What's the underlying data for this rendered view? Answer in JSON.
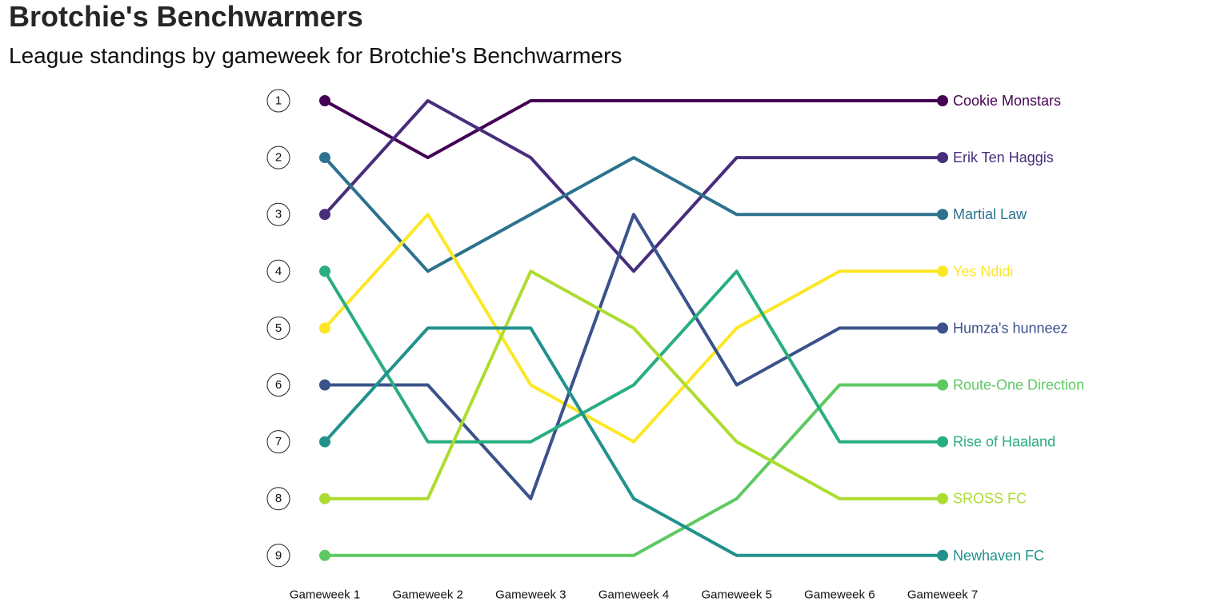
{
  "chart_data": {
    "type": "line",
    "title": "Brotchie's Benchwarmers",
    "subtitle": "League standings by gameweek for Brotchie's Benchwarmers",
    "categories": [
      "Gameweek 1",
      "Gameweek 2",
      "Gameweek 3",
      "Gameweek 4",
      "Gameweek 5",
      "Gameweek 6",
      "Gameweek 7"
    ],
    "ranks": [
      1,
      2,
      3,
      4,
      5,
      6,
      7,
      8,
      9
    ],
    "y_reversed": true,
    "ylim": [
      1,
      9
    ],
    "grid": false,
    "legend": "direct-labels-right",
    "series": [
      {
        "name": "Cookie Monstars",
        "color": "#440154",
        "values": [
          1,
          2,
          1,
          1,
          1,
          1,
          1
        ]
      },
      {
        "name": "Erik Ten Haggis",
        "color": "#472d7b",
        "values": [
          3,
          1,
          2,
          4,
          2,
          2,
          2
        ]
      },
      {
        "name": "Martial Law",
        "color": "#2c728e",
        "values": [
          2,
          4,
          3,
          2,
          3,
          3,
          3
        ]
      },
      {
        "name": "Yes Ndidi",
        "color": "#fde725",
        "values": [
          5,
          3,
          6,
          7,
          5,
          4,
          4
        ]
      },
      {
        "name": "Humza's hunneez",
        "color": "#3b528b",
        "values": [
          6,
          6,
          8,
          3,
          6,
          5,
          5
        ]
      },
      {
        "name": "Route-One Direction",
        "color": "#5ec962",
        "values": [
          9,
          9,
          9,
          9,
          8,
          6,
          6
        ]
      },
      {
        "name": "Rise of Haaland",
        "color": "#28ae80",
        "values": [
          4,
          7,
          7,
          6,
          4,
          7,
          7
        ]
      },
      {
        "name": "SROSS FC",
        "color": "#addc30",
        "values": [
          8,
          8,
          4,
          5,
          7,
          8,
          8
        ]
      },
      {
        "name": "Newhaven FC",
        "color": "#21918c",
        "values": [
          7,
          5,
          5,
          8,
          9,
          9,
          9
        ]
      }
    ]
  }
}
